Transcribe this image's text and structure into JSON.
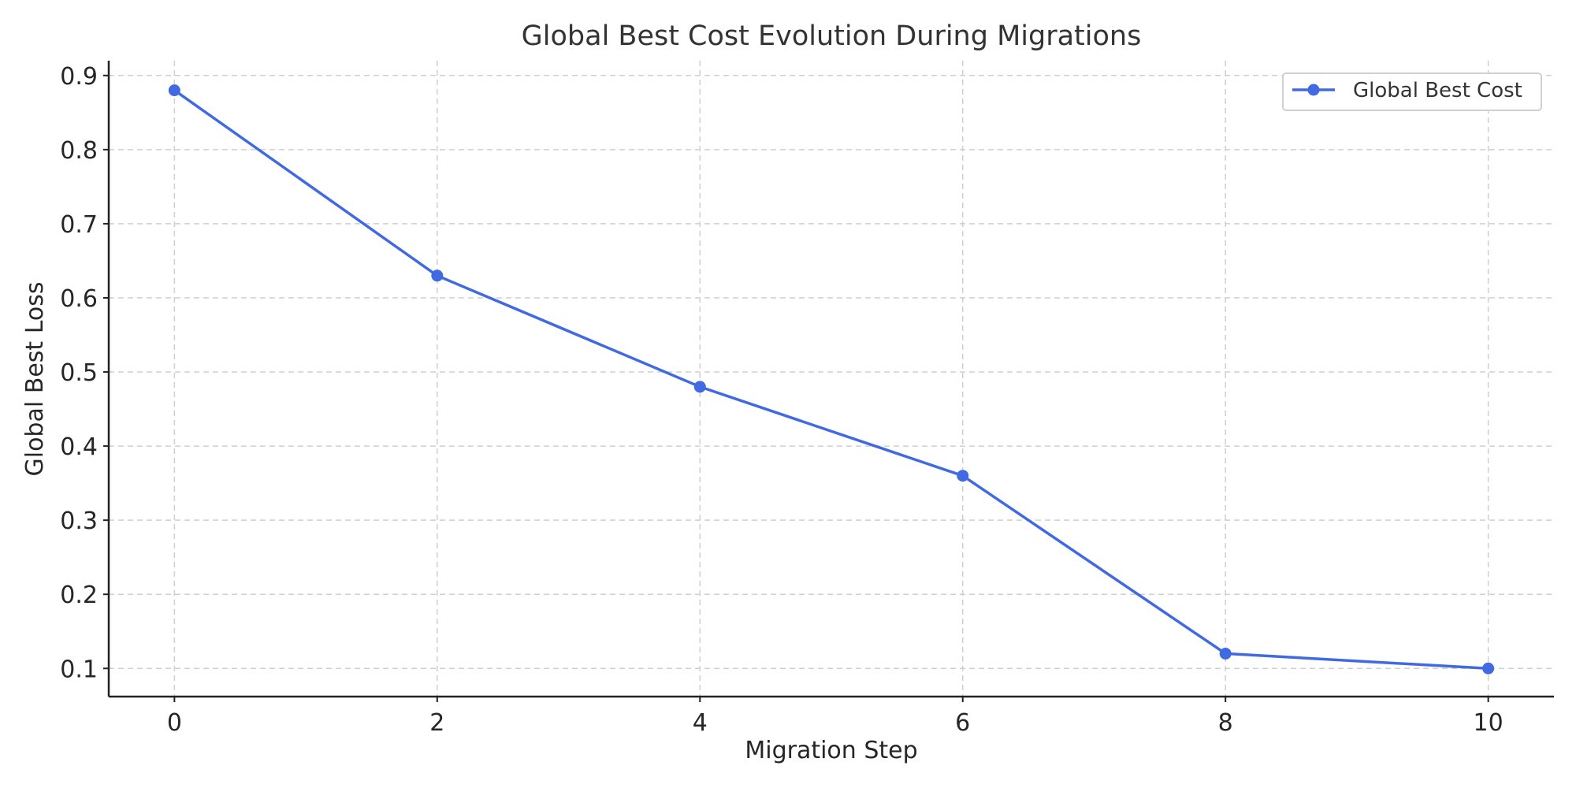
{
  "chart_data": {
    "type": "line",
    "title": "Global Best Cost Evolution During Migrations",
    "xlabel": "Migration Step",
    "ylabel": "Global Best Loss",
    "xlim": [
      -0.5,
      10.5
    ],
    "ylim": [
      0.062,
      0.92
    ],
    "xticks": [
      0,
      2,
      4,
      6,
      8,
      10
    ],
    "yticks": [
      0.1,
      0.2,
      0.3,
      0.4,
      0.5,
      0.6,
      0.7,
      0.8,
      0.9
    ],
    "xtick_labels": [
      "0",
      "2",
      "4",
      "6",
      "8",
      "10"
    ],
    "ytick_labels": [
      "0.1",
      "0.2",
      "0.3",
      "0.4",
      "0.5",
      "0.6",
      "0.7",
      "0.8",
      "0.9"
    ],
    "grid": true,
    "legend_position": "top-right",
    "series": [
      {
        "name": "Global Best Cost",
        "color": "#4169E1",
        "marker": "circle",
        "x": [
          0,
          2,
          4,
          6,
          8,
          10
        ],
        "y": [
          0.88,
          0.63,
          0.48,
          0.36,
          0.12,
          0.1
        ]
      }
    ]
  }
}
